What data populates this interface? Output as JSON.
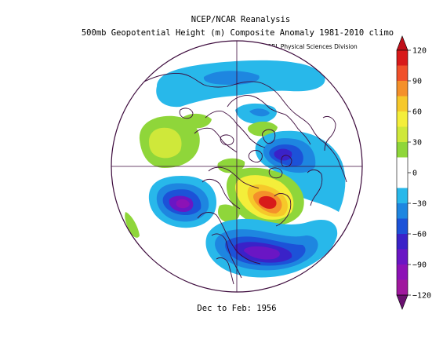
{
  "title_line1": "NCEP/NCAR Reanalysis",
  "title_line2": "500mb Geopotential Height (m) Composite Anomaly 1981-2010 climo",
  "credit": "NOAA/ESRL Physical Sciences Division",
  "caption": "Dec to Feb: 1956",
  "colorbar": {
    "tick_labels": [
      "120",
      "90",
      "60",
      "30",
      "0",
      "−30",
      "−60",
      "−90",
      "−120"
    ],
    "colors": [
      "#d81a1a",
      "#f0502a",
      "#f4902a",
      "#f6c82a",
      "#f4ee3a",
      "#cfe83a",
      "#8fd63a",
      "#ffffff",
      "#ffffff",
      "#28b8ea",
      "#1e86e0",
      "#1c52d8",
      "#3a22c8",
      "#6a16c4",
      "#8c12b6",
      "#a0189e"
    ]
  },
  "anomaly_fields": [
    {
      "name": "siberia-negative-anomaly",
      "level": -60
    },
    {
      "name": "pacific-positive-anomaly",
      "level": 30
    },
    {
      "name": "alaska-positive-anomaly",
      "level": 30
    },
    {
      "name": "europe-negative-anomaly",
      "level": -60
    },
    {
      "name": "greenland-positive-anomaly",
      "level": 30
    },
    {
      "name": "north-atlantic-negative-anomaly",
      "level": -90
    },
    {
      "name": "canada-positive-anomaly",
      "level": 120
    },
    {
      "name": "eastern-us-negative-anomaly",
      "level": -90
    },
    {
      "name": "arctic-positive-anomaly",
      "level": 30
    }
  ]
}
